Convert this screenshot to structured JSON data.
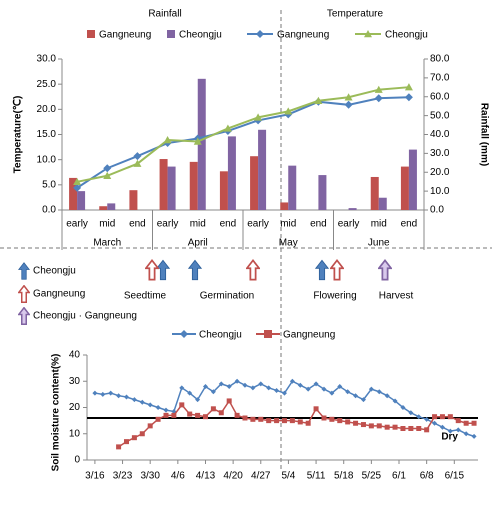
{
  "chart_data": [
    {
      "type": "bar",
      "legend_titles": [
        "Rainfall",
        "Temperature"
      ],
      "categories": [
        "early",
        "mid",
        "end",
        "early",
        "mid",
        "end",
        "early",
        "mid",
        "end",
        "early",
        "mid",
        "end"
      ],
      "month_labels": [
        "March",
        "April",
        "May",
        "June"
      ],
      "ylabel": "Temperature(℃)",
      "y2label": "Rainfall (mm)",
      "ylim": [
        0,
        30
      ],
      "yticks": [
        {
          "value": 0,
          "label": "0.0"
        },
        {
          "value": 5,
          "label": "5.0"
        },
        {
          "value": 10,
          "label": "10.0"
        },
        {
          "value": 15,
          "label": "15.0"
        },
        {
          "value": 20,
          "label": "20.0"
        },
        {
          "value": 25,
          "label": "25.0"
        },
        {
          "value": 30,
          "label": "30.0"
        }
      ],
      "y2lim": [
        0,
        80
      ],
      "y2ticks": [
        {
          "value": 0,
          "label": "0.0"
        },
        {
          "value": 10,
          "label": "10.0"
        },
        {
          "value": 20,
          "label": "20.0"
        },
        {
          "value": 30,
          "label": "30.0"
        },
        {
          "value": 40,
          "label": "40.0"
        },
        {
          "value": 50,
          "label": "50.0"
        },
        {
          "value": 60,
          "label": "60.0"
        },
        {
          "value": 70,
          "label": "70.0"
        },
        {
          "value": 80,
          "label": "80.0"
        }
      ],
      "series": [
        {
          "name": "Gangneung",
          "type": "bar",
          "axis": "y2",
          "color": "#c0504d",
          "values": [
            17,
            2,
            10.5,
            27,
            25.5,
            20.5,
            28.5,
            4,
            0,
            0,
            17.5,
            23
          ]
        },
        {
          "name": "Cheongju",
          "type": "bar",
          "axis": "y2",
          "color": "#8064a2",
          "values": [
            10,
            3.5,
            0,
            23,
            69.5,
            39,
            42.5,
            23.5,
            18.5,
            1,
            6.5,
            32
          ]
        },
        {
          "name": "Gangneung",
          "type": "line",
          "color": "#4f81bd",
          "marker": "diamond",
          "values": [
            4.4,
            8.3,
            10.7,
            13.3,
            14.2,
            15.7,
            17.8,
            19.0,
            21.5,
            20.9,
            22.2,
            22.4
          ]
        },
        {
          "name": "Cheongju",
          "type": "line",
          "color": "#9bbb59",
          "marker": "triangle",
          "values": [
            5.6,
            6.8,
            9.2,
            13.9,
            13.6,
            16.2,
            18.4,
            19.6,
            21.7,
            22.4,
            23.9,
            24.4
          ]
        }
      ]
    },
    {
      "type": "line",
      "ylabel": "Soil moisture content(%)",
      "x": [
        "3/16",
        "3/18",
        "3/20",
        "3/22",
        "3/24",
        "3/26",
        "3/28",
        "3/30",
        "4/1",
        "4/3",
        "4/5",
        "4/7",
        "4/9",
        "4/11",
        "4/13",
        "4/15",
        "4/17",
        "4/19",
        "4/21",
        "4/23",
        "4/25",
        "4/27",
        "4/29",
        "5/1",
        "5/3",
        "5/5",
        "5/7",
        "5/9",
        "5/11",
        "5/13",
        "5/15",
        "5/17",
        "5/19",
        "5/21",
        "5/23",
        "5/25",
        "5/27",
        "5/29",
        "5/31",
        "6/2",
        "6/4",
        "6/6",
        "6/8",
        "6/10",
        "6/12",
        "6/14",
        "6/16",
        "6/18",
        "6/20"
      ],
      "xlim": [
        "3/14",
        "6/21"
      ],
      "xticks": [
        "3/16",
        "3/23",
        "3/30",
        "4/6",
        "4/13",
        "4/20",
        "4/27",
        "5/4",
        "5/11",
        "5/18",
        "5/25",
        "6/1",
        "6/8",
        "6/15"
      ],
      "ylim": [
        0,
        40
      ],
      "yticks": [
        0,
        10,
        20,
        30,
        40
      ],
      "threshold": {
        "value": 16,
        "label": "Dry",
        "color": "#000000"
      },
      "series": [
        {
          "name": "Cheongju",
          "color": "#4f81bd",
          "marker": "diamond",
          "values": [
            25.5,
            25,
            25.5,
            24.5,
            24,
            23,
            22,
            21,
            20,
            19,
            18.5,
            27.5,
            25.5,
            23,
            28,
            26,
            29,
            28,
            30,
            28.5,
            27.5,
            29,
            27.5,
            26.5,
            25.5,
            30,
            28.5,
            27,
            29,
            27,
            25.5,
            28,
            26,
            24.5,
            23,
            27,
            26,
            24.5,
            22.5,
            20,
            18,
            16.5,
            15.5,
            14,
            12.5,
            11,
            11.5,
            10,
            9
          ]
        },
        {
          "name": "Gangneung",
          "color": "#c0504d",
          "marker": "square",
          "values": [
            null,
            null,
            null,
            5,
            7,
            8.5,
            10,
            13,
            15.5,
            17,
            17,
            21,
            17.5,
            17,
            16.5,
            19.5,
            18,
            22.5,
            17,
            16,
            15.5,
            15.5,
            15,
            15,
            15,
            15,
            14.5,
            14,
            19.5,
            16,
            15.5,
            15,
            14.5,
            14,
            13.5,
            13,
            13,
            12.5,
            12.5,
            12,
            12,
            12,
            11.5,
            16.5,
            16.5,
            16.5,
            15,
            14,
            14
          ]
        }
      ]
    }
  ],
  "events": {
    "legend": [
      "Cheongju",
      "Gangneung",
      "Cheongju · Gangneung"
    ],
    "stages": [
      "Seedtime",
      "Germination",
      "Flowering",
      "Harvest"
    ]
  }
}
